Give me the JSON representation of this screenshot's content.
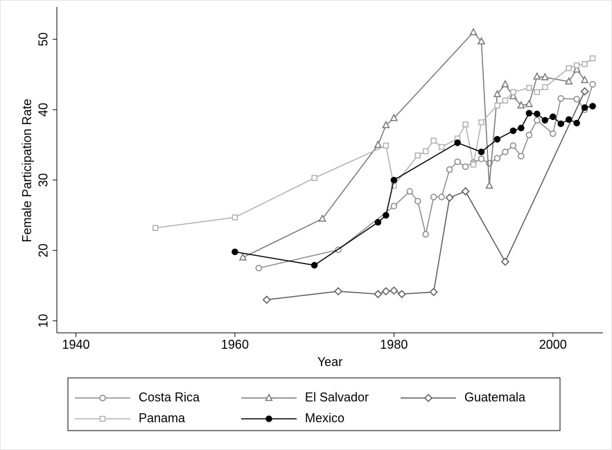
{
  "chart_data": {
    "type": "line",
    "x_label": "Year",
    "y_label": "Female Participation Rate",
    "xlim": [
      1937.6,
      2006.3
    ],
    "ylim": [
      8.3,
      54.6
    ],
    "xticks": [
      1940,
      1960,
      1980,
      2000
    ],
    "yticks": [
      10,
      20,
      30,
      40,
      50
    ],
    "grid": false,
    "legend": "bottom",
    "series": [
      {
        "name": "Costa Rica",
        "color": "#8a8a8a",
        "marker": "circle",
        "marker_fill": false,
        "x": [
          1963,
          1973,
          1980,
          1982,
          1983,
          1984,
          1985,
          1986,
          1987,
          1988,
          1989,
          1990,
          1991,
          1992,
          1993,
          1994,
          1995,
          1996,
          1997,
          1998,
          2000,
          2001,
          2003,
          2004,
          2005
        ],
        "values": [
          17.5,
          20.1,
          26.3,
          28.4,
          27,
          22.3,
          27.6,
          27.6,
          31.5,
          32.6,
          31.9,
          32.5,
          33,
          32.4,
          33.1,
          34,
          34.9,
          33.4,
          36.4,
          38.5,
          36.6,
          41.6,
          41.5,
          40,
          43.6
        ]
      },
      {
        "name": "El Salvador",
        "color": "#777777",
        "marker": "triangle",
        "marker_fill": false,
        "x": [
          1961,
          1971,
          1978,
          1979,
          1980,
          1990,
          1991,
          1992,
          1993,
          1994,
          1995,
          1996,
          1997,
          1998,
          1999,
          2002,
          2003,
          2004
        ],
        "values": [
          19,
          24.5,
          35,
          37.8,
          38.8,
          51,
          49.7,
          29.2,
          42.2,
          43.6,
          41.9,
          40.6,
          40.8,
          44.7,
          44.6,
          44,
          45.7,
          44.2
        ]
      },
      {
        "name": "Guatemala",
        "color": "#5a5a5a",
        "marker": "diamond",
        "marker_fill": false,
        "x": [
          1964,
          1973,
          1978,
          1979,
          1980,
          1981,
          1985,
          1987,
          1989,
          1994,
          2004
        ],
        "values": [
          13,
          14.2,
          13.8,
          14.2,
          14.3,
          13.8,
          14.1,
          27.5,
          28.4,
          18.4,
          42.6
        ]
      },
      {
        "name": "Panama",
        "color": "#b0b0b0",
        "marker": "square",
        "marker_fill": false,
        "x": [
          1950,
          1960,
          1970,
          1979,
          1980,
          1983,
          1984,
          1985,
          1986,
          1988,
          1989,
          1990,
          1991,
          1993,
          1994,
          1995,
          1997,
          1998,
          1999,
          2002,
          2003,
          2004,
          2005
        ],
        "values": [
          23.2,
          24.7,
          30.3,
          34.9,
          29.2,
          33.5,
          34.1,
          35.6,
          34.7,
          35.9,
          37.9,
          32.2,
          38.2,
          40.6,
          41.3,
          42.5,
          43.1,
          42.5,
          43.2,
          45.9,
          46.3,
          46.5,
          47.3
        ]
      },
      {
        "name": "Mexico",
        "color": "#000000",
        "marker": "circle",
        "marker_fill": true,
        "x": [
          1960,
          1970,
          1978,
          1979,
          1980,
          1988,
          1991,
          1993,
          1995,
          1996,
          1997,
          1998,
          1999,
          2000,
          2001,
          2002,
          2003,
          2004,
          2005
        ],
        "values": [
          19.8,
          17.9,
          24,
          25,
          30,
          35.3,
          34,
          35.8,
          37,
          37.4,
          39.5,
          39.4,
          38.5,
          39,
          38,
          38.6,
          38.1,
          40.3,
          40.5
        ]
      }
    ]
  }
}
